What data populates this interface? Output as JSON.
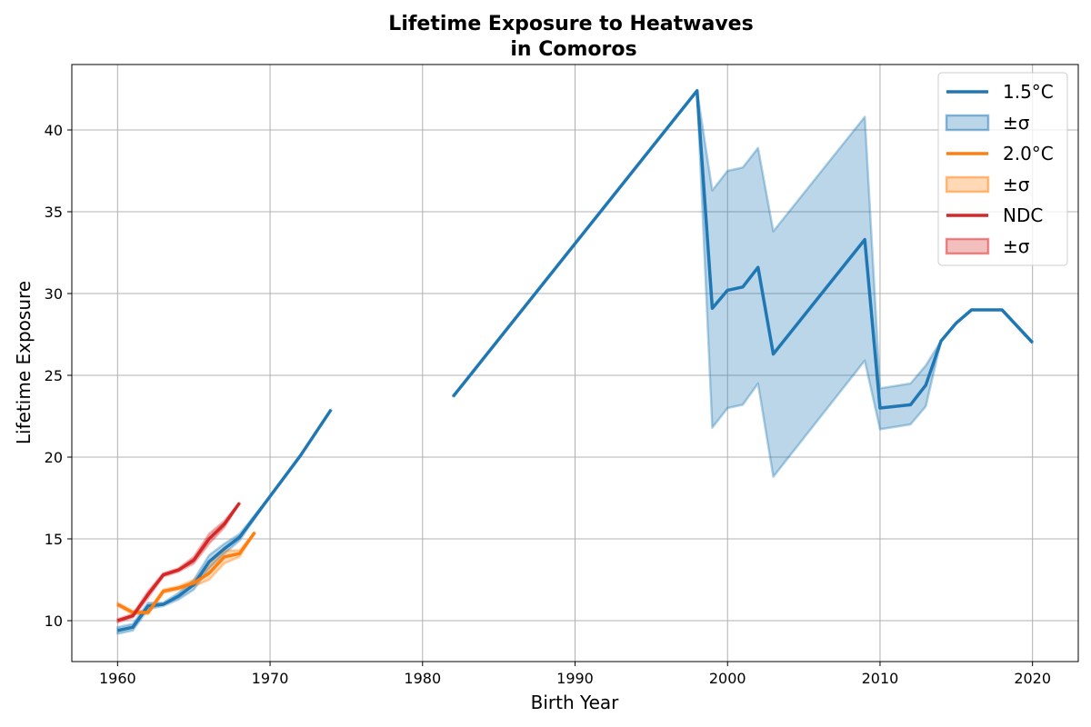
{
  "chart_data": {
    "type": "line",
    "title_line1": "Lifetime Exposure to Heatwaves",
    "title_line2": "in Comoros",
    "xlabel": "Birth Year",
    "ylabel": "Lifetime Exposure",
    "xlim": [
      1957,
      2023
    ],
    "ylim": [
      7.5,
      44
    ],
    "xticks": [
      1960,
      1970,
      1980,
      1990,
      2000,
      2010,
      2020
    ],
    "yticks": [
      10,
      15,
      20,
      25,
      30,
      35,
      40
    ],
    "grid": true,
    "legend_position": "top-right",
    "series": [
      {
        "name": "1.5°C",
        "band_label": "±σ",
        "color": "#1f77b4",
        "x": [
          1960,
          1961,
          1962,
          1963,
          1964,
          1965,
          1966,
          1967,
          1968,
          1970,
          1972,
          1974,
          1981,
          1982,
          1998,
          1999,
          2000,
          2001,
          2002,
          2003,
          2009,
          2010,
          2012,
          2013,
          2014,
          2015,
          2016,
          2018,
          2020
        ],
        "y": [
          9.4,
          9.6,
          10.9,
          11.0,
          11.5,
          12.2,
          13.6,
          14.4,
          15.1,
          17.6,
          20.1,
          22.9,
          null,
          23.7,
          42.4,
          29.1,
          30.2,
          30.4,
          31.6,
          26.3,
          33.3,
          23.0,
          23.2,
          24.4,
          27.1,
          28.2,
          29.0,
          29.0,
          27.0
        ],
        "lower": [
          9.2,
          9.4,
          10.7,
          10.9,
          11.3,
          11.9,
          13.2,
          14.1,
          14.9,
          17.6,
          20.1,
          22.9,
          null,
          23.7,
          42.4,
          21.8,
          23.0,
          23.2,
          24.5,
          18.8,
          25.9,
          21.7,
          22.0,
          23.1,
          27.1,
          28.2,
          29.0,
          29.0,
          27.0
        ],
        "upper": [
          9.6,
          9.8,
          11.1,
          11.1,
          11.7,
          12.5,
          14.0,
          14.7,
          15.3,
          17.6,
          20.1,
          22.9,
          null,
          23.7,
          42.4,
          36.3,
          37.5,
          37.7,
          38.9,
          33.8,
          40.8,
          24.2,
          24.5,
          25.6,
          27.1,
          28.2,
          29.0,
          29.0,
          27.0
        ]
      },
      {
        "name": "2.0°C",
        "band_label": "±σ",
        "color": "#ff7f0e",
        "x": [
          1960,
          1961,
          1962,
          1963,
          1964,
          1965,
          1966,
          1967,
          1968,
          1969
        ],
        "y": [
          11.0,
          10.5,
          10.5,
          11.8,
          12.0,
          12.3,
          12.9,
          13.9,
          14.1,
          15.4
        ],
        "lower": [
          10.9,
          10.4,
          10.4,
          11.7,
          11.9,
          12.1,
          12.5,
          13.5,
          13.9,
          15.4
        ],
        "upper": [
          11.1,
          10.6,
          10.6,
          11.9,
          12.1,
          12.5,
          13.3,
          14.3,
          14.3,
          15.4
        ]
      },
      {
        "name": "NDC",
        "band_label": "±σ",
        "color": "#d62728",
        "x": [
          1960,
          1961,
          1962,
          1963,
          1964,
          1965,
          1966,
          1967,
          1968
        ],
        "y": [
          10.0,
          10.3,
          11.6,
          12.8,
          13.1,
          13.7,
          15.0,
          15.9,
          17.2
        ],
        "lower": [
          9.9,
          10.2,
          11.4,
          12.7,
          13.0,
          13.5,
          14.7,
          15.7,
          17.2
        ],
        "upper": [
          10.1,
          10.4,
          11.8,
          12.9,
          13.2,
          13.9,
          15.3,
          16.1,
          17.2
        ]
      }
    ]
  }
}
